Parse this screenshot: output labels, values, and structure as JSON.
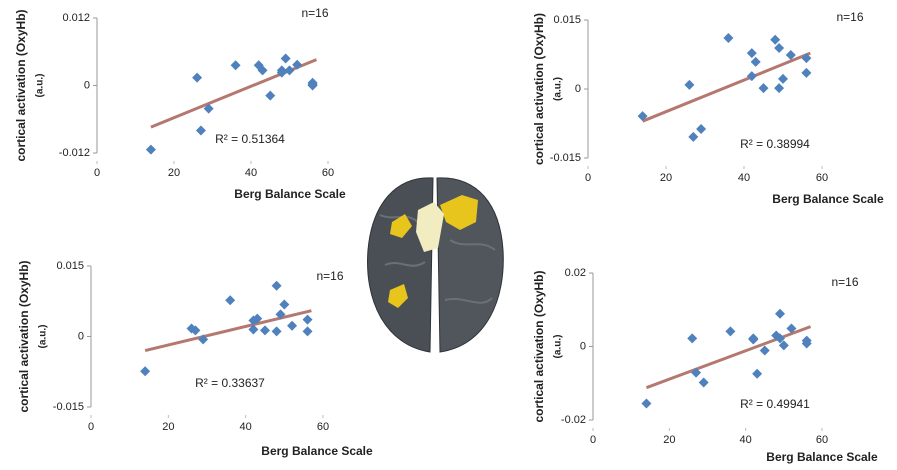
{
  "chart_data": [
    {
      "type": "scatter",
      "xlabel": "Berg Balance Scale",
      "ylabel": "cortical activation  (OxyHb)",
      "ylabel_unit": "(a.u.)",
      "n_label": "n=16",
      "annotation": "R² = 0.51364",
      "x": [
        14,
        26,
        27,
        29,
        36,
        42,
        43,
        45,
        48,
        49,
        50,
        52,
        56,
        56,
        48,
        56
      ],
      "values": [
        -0.0114,
        0.0014,
        -0.008,
        -0.0041,
        0.0036,
        0.0036,
        0.0027,
        -0.0018,
        0.0027,
        0.0048,
        0.0027,
        0.0037,
        0.0005,
        0.0,
        0.0023,
        0.0002
      ],
      "color": "#4f81bd",
      "fit_line": {
        "x": [
          14,
          57
        ],
        "values": [
          -0.0074,
          0.0046
        ],
        "color": "#b5786f"
      },
      "xlim": [
        0,
        60
      ],
      "xticks": [
        0,
        20,
        40,
        60
      ],
      "ylim": [
        -0.012,
        0.012
      ],
      "yticks": [
        -0.012,
        0,
        0.012
      ]
    },
    {
      "type": "scatter",
      "xlabel": "Berg Balance Scale",
      "ylabel": "cortical activation  (OxyHb)",
      "ylabel_unit": "(a.u.)",
      "n_label": "n=16",
      "annotation": "R² = 0.38994",
      "x": [
        14,
        26,
        27,
        29,
        36,
        42,
        43,
        42,
        45,
        48,
        49,
        49,
        50,
        52,
        56,
        56
      ],
      "values": [
        -0.0059,
        0.0009,
        -0.0104,
        -0.0087,
        0.0111,
        0.0078,
        0.0059,
        0.0028,
        0.0002,
        0.0107,
        0.0089,
        0.0002,
        0.0022,
        0.0074,
        0.0067,
        0.0035
      ],
      "color": "#4f81bd",
      "fit_line": {
        "x": [
          14,
          57
        ],
        "values": [
          -0.007,
          0.0078
        ],
        "color": "#b5786f"
      },
      "xlim": [
        0,
        60
      ],
      "xticks": [
        0,
        20,
        40,
        60
      ],
      "ylim": [
        -0.015,
        0.015
      ],
      "yticks": [
        -0.015,
        0,
        0.015
      ]
    },
    {
      "type": "scatter",
      "xlabel": "Berg Balance Scale",
      "ylabel": "cortical activation  (OxyHb)",
      "ylabel_unit": "(a.u.)",
      "n_label": "n=16",
      "annotation": "R² = 0.33637",
      "x": [
        14,
        26,
        27,
        29,
        36,
        42,
        42,
        43,
        45,
        48,
        48,
        49,
        50,
        52,
        56,
        56
      ],
      "values": [
        -0.0074,
        0.0017,
        0.0013,
        -0.0006,
        0.0077,
        0.0015,
        0.0034,
        0.0038,
        0.0013,
        0.0011,
        0.0108,
        0.0047,
        0.0068,
        0.0023,
        0.0036,
        0.0011
      ],
      "color": "#4f81bd",
      "fit_line": {
        "x": [
          14,
          57
        ],
        "values": [
          -0.003,
          0.0055
        ],
        "color": "#b5786f"
      },
      "xlim": [
        0,
        60
      ],
      "xticks": [
        0,
        20,
        40,
        60
      ],
      "ylim": [
        -0.015,
        0.015
      ],
      "yticks": [
        -0.015,
        0,
        0.015
      ]
    },
    {
      "type": "scatter",
      "xlabel": "Berg Balance Scale",
      "ylabel": "cortical activation  (OxyHb)",
      "ylabel_unit": "(a.u.)",
      "n_label": "n=16",
      "annotation": "R² = 0.49941",
      "x": [
        14,
        26,
        27,
        29,
        36,
        42,
        43,
        45,
        48,
        49,
        49,
        50,
        52,
        56,
        56,
        42
      ],
      "values": [
        -0.0155,
        0.0022,
        -0.0071,
        -0.0098,
        0.0041,
        0.0022,
        -0.0074,
        -0.0011,
        0.003,
        0.0089,
        0.0022,
        0.0003,
        0.0049,
        0.0016,
        0.0008,
        0.0019
      ],
      "color": "#4f81bd",
      "fit_line": {
        "x": [
          14,
          57
        ],
        "values": [
          -0.0112,
          0.0054
        ],
        "color": "#b5786f"
      },
      "xlim": [
        0,
        60
      ],
      "xticks": [
        0,
        20,
        40,
        60
      ],
      "ylim": [
        -0.02,
        0.02
      ],
      "yticks": [
        -0.02,
        0,
        0.02
      ]
    }
  ]
}
